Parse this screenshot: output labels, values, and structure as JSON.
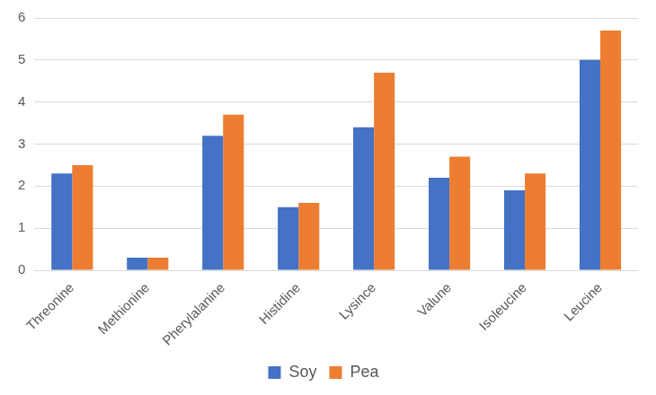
{
  "chart_data": {
    "type": "bar",
    "categories": [
      "Threonine",
      "Methionine",
      "Pherylalanine",
      "Histidine",
      "Lysince",
      "Valune",
      "Isoleucine",
      "Leucine"
    ],
    "series": [
      {
        "name": "Soy",
        "color": "#4472c4",
        "values": [
          2.3,
          0.3,
          3.2,
          1.5,
          3.4,
          2.2,
          1.9,
          5.0
        ]
      },
      {
        "name": "Pea",
        "color": "#ed7d31",
        "values": [
          2.5,
          0.3,
          3.7,
          1.6,
          4.7,
          2.7,
          2.3,
          5.7
        ]
      }
    ],
    "ylim": [
      0,
      6
    ],
    "yticks": [
      0,
      1,
      2,
      3,
      4,
      5,
      6
    ],
    "grid": true,
    "legend": "bottom"
  }
}
